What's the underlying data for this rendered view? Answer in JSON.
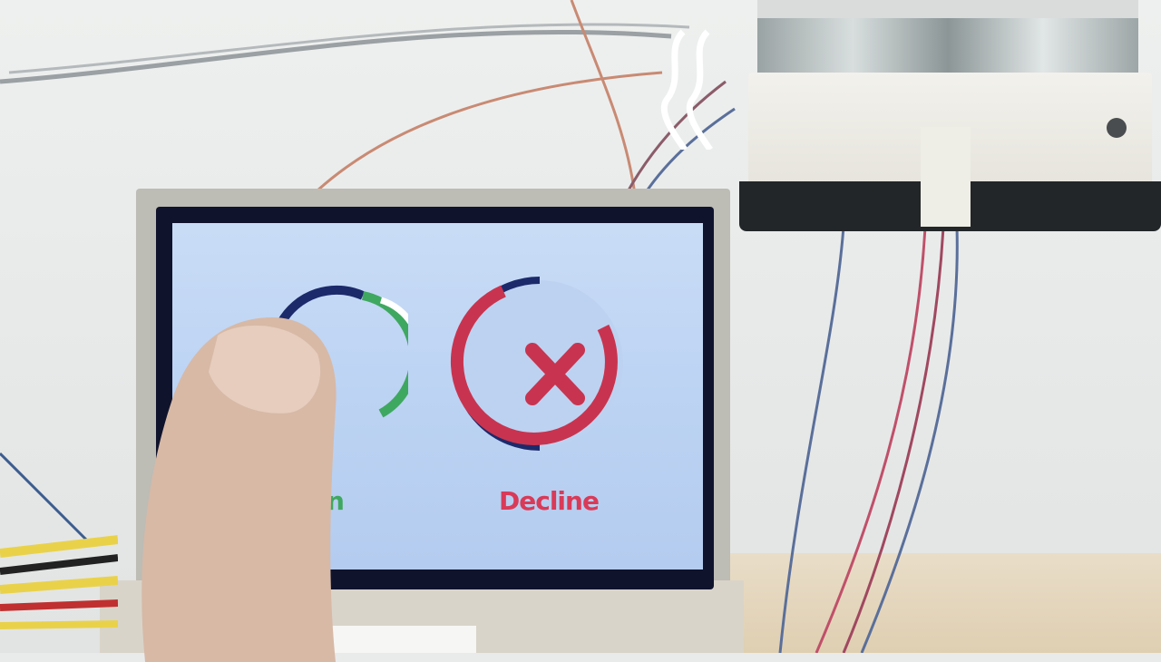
{
  "screen": {
    "accept_label": "n",
    "decline_label": "Decline"
  },
  "icons": {
    "accept": "check-circle-icon",
    "decline": "x-circle-icon",
    "signal": "wireless-signal-icon"
  },
  "colors": {
    "screen_bg": "#c0d6f4",
    "bezel": "#10132c",
    "accept": "#3fa860",
    "decline": "#d93a58",
    "decline_ring": "#1c2a6b"
  }
}
